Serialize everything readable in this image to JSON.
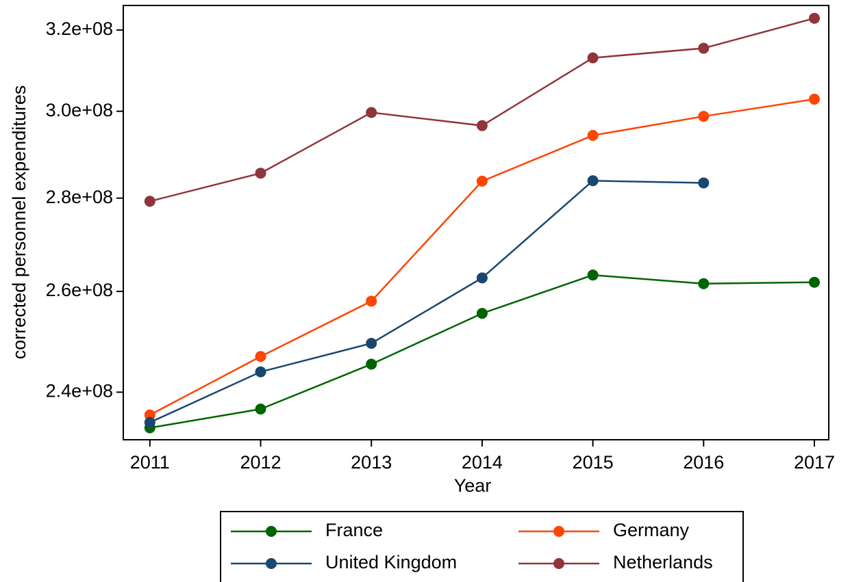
{
  "chart_data": {
    "type": "line",
    "x_label": "Year",
    "y_label": "corrected personnel expenditures",
    "x": [
      2011,
      2012,
      2013,
      2014,
      2015,
      2016,
      2017
    ],
    "series": [
      {
        "name": "France",
        "color": "#006400",
        "values": [
          233300000,
          236800000,
          245400000,
          255500000,
          263400000,
          261600000,
          261900000
        ]
      },
      {
        "name": "Germany",
        "color": "#ff4500",
        "values": [
          235700000,
          246900000,
          258000000,
          283800000,
          294300000,
          298800000,
          302900000
        ]
      },
      {
        "name": "United Kingdom",
        "color": "#1a476f",
        "values": [
          234300000,
          243900000,
          249500000,
          262800000,
          283900000,
          283400000,
          null
        ]
      },
      {
        "name": "Netherlands",
        "color": "#90353b",
        "values": [
          279300000,
          285600000,
          299700000,
          296600000,
          313000000,
          315400000,
          323000000
        ]
      }
    ],
    "xlim": [
      2010.76,
      2017.13
    ],
    "xticks": [
      2011,
      2012,
      2013,
      2014,
      2015,
      2016,
      2017
    ],
    "ylim": [
      231100000,
      326300000
    ],
    "yscale": "log",
    "yticks": [
      {
        "value": 240000000,
        "label": "2.4e+08"
      },
      {
        "value": 260000000,
        "label": "2.6e+08"
      },
      {
        "value": 280000000,
        "label": "2.8e+08"
      },
      {
        "value": 300000000,
        "label": "3.0e+08"
      },
      {
        "value": 320000000,
        "label": "3.2e+08"
      }
    ],
    "grid": false,
    "legend": "bottom"
  }
}
